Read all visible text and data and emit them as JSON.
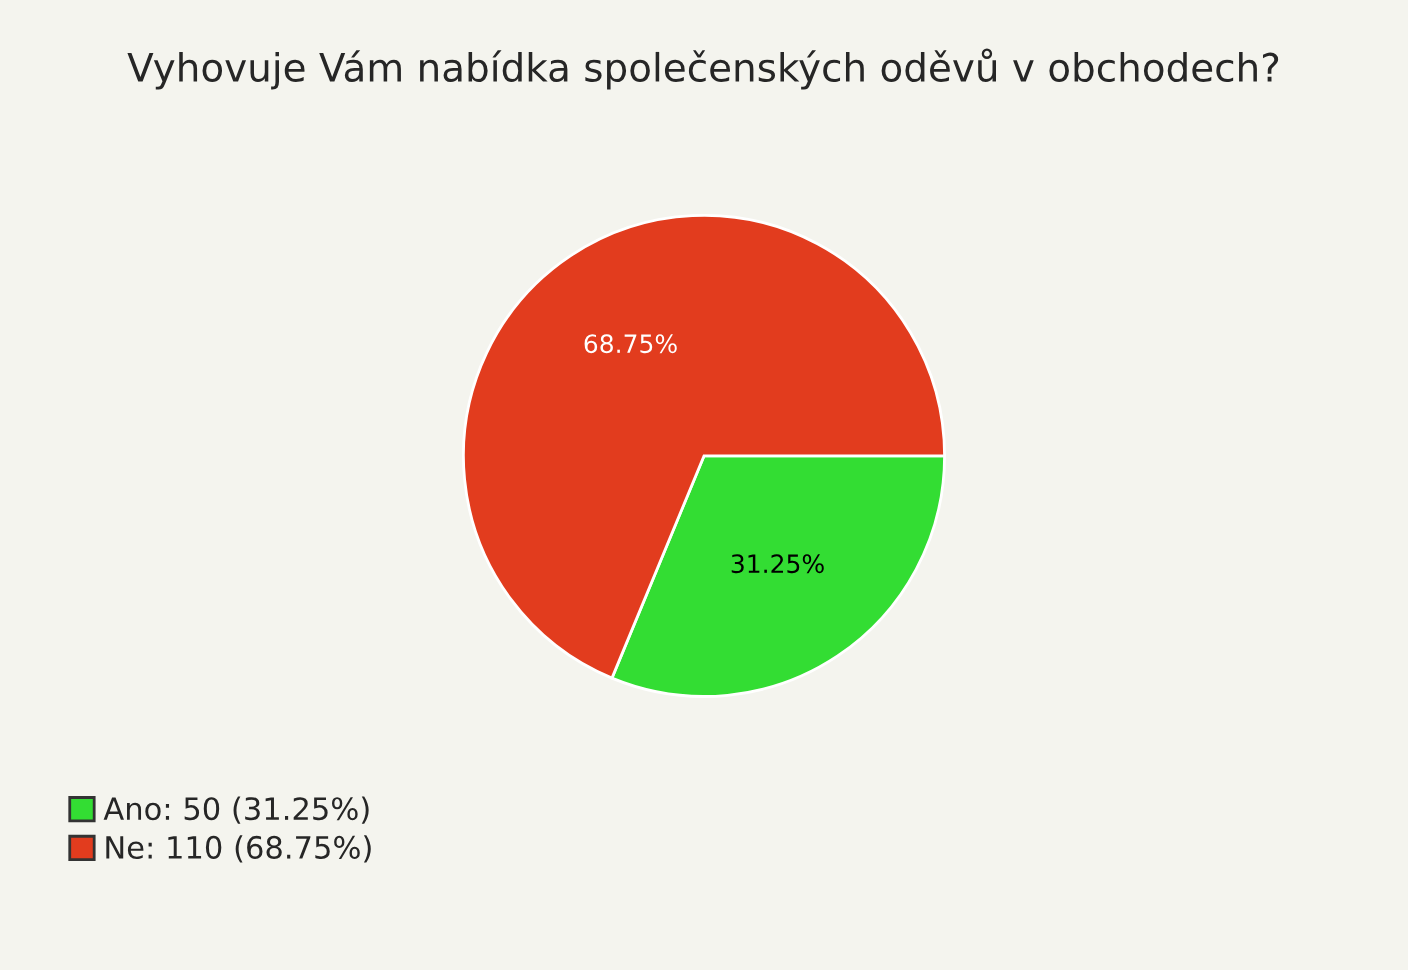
{
  "chart_data": {
    "type": "pie",
    "title": "Vyhovuje Vám nabídka společenských oděvů v obchodech?",
    "categories": [
      "Ano: 50 (31.25%)",
      "Ne: 110 (68.75%)"
    ],
    "values": [
      31.25,
      68.75
    ],
    "value_labels": [
      "31.25%",
      "68.75%"
    ],
    "colors": [
      "#33dd33",
      "#e23c1e"
    ],
    "legend": "bottom left"
  }
}
